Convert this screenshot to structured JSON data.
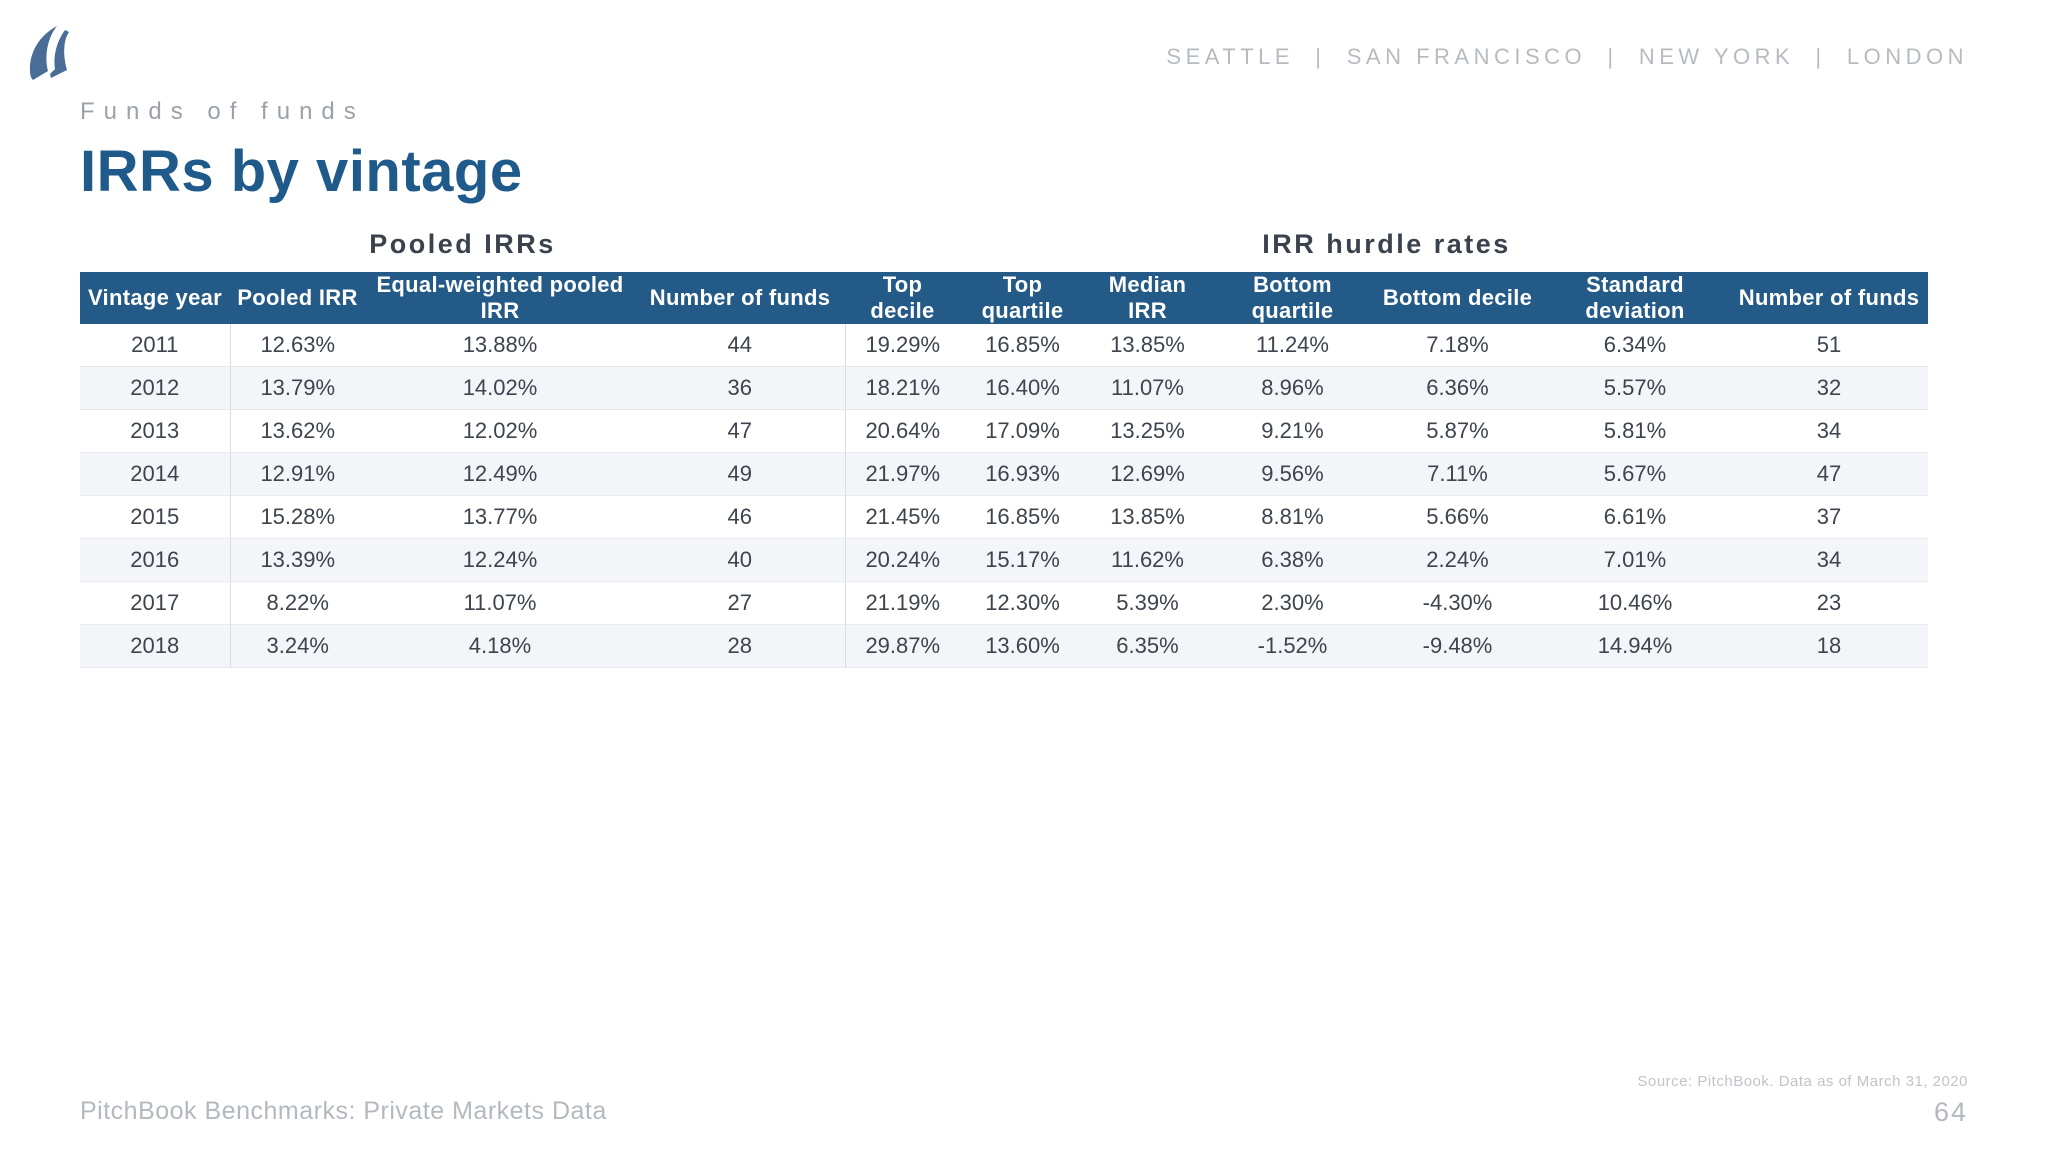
{
  "header": {
    "cities": "SEATTLE  |  SAN FRANCISCO  |  NEW YORK  |  LONDON",
    "eyebrow": "Funds of funds",
    "title": "IRRs by vintage"
  },
  "icons": {
    "logo": "pitchbook-sail-logo"
  },
  "colors": {
    "table_header_bg": "#235a87",
    "title_blue": "#1f5a8b",
    "logo_blue": "#496d96",
    "row_stripe": "#f3f5f9",
    "muted_gray": "#b4b9bf",
    "body_text": "#3d444d"
  },
  "table": {
    "group_headers": [
      {
        "label": "Pooled IRRs",
        "span": 4
      },
      {
        "label": "IRR hurdle rates",
        "span": 7
      }
    ],
    "columns": [
      "Vintage year",
      "Pooled IRR",
      "Equal-weighted pooled IRR",
      "Number of funds",
      "Top decile",
      "Top quartile",
      "Median IRR",
      "Bottom quartile",
      "Bottom decile",
      "Standard deviation",
      "Number of funds"
    ],
    "rows": [
      [
        "2011",
        "12.63%",
        "13.88%",
        "44",
        "19.29%",
        "16.85%",
        "13.85%",
        "11.24%",
        "7.18%",
        "6.34%",
        "51"
      ],
      [
        "2012",
        "13.79%",
        "14.02%",
        "36",
        "18.21%",
        "16.40%",
        "11.07%",
        "8.96%",
        "6.36%",
        "5.57%",
        "32"
      ],
      [
        "2013",
        "13.62%",
        "12.02%",
        "47",
        "20.64%",
        "17.09%",
        "13.25%",
        "9.21%",
        "5.87%",
        "5.81%",
        "34"
      ],
      [
        "2014",
        "12.91%",
        "12.49%",
        "49",
        "21.97%",
        "16.93%",
        "12.69%",
        "9.56%",
        "7.11%",
        "5.67%",
        "47"
      ],
      [
        "2015",
        "15.28%",
        "13.77%",
        "46",
        "21.45%",
        "16.85%",
        "13.85%",
        "8.81%",
        "5.66%",
        "6.61%",
        "37"
      ],
      [
        "2016",
        "13.39%",
        "12.24%",
        "40",
        "20.24%",
        "15.17%",
        "11.62%",
        "6.38%",
        "2.24%",
        "7.01%",
        "34"
      ],
      [
        "2017",
        "8.22%",
        "11.07%",
        "27",
        "21.19%",
        "12.30%",
        "5.39%",
        "2.30%",
        "-4.30%",
        "10.46%",
        "23"
      ],
      [
        "2018",
        "3.24%",
        "4.18%",
        "28",
        "29.87%",
        "13.60%",
        "6.35%",
        "-1.52%",
        "-9.48%",
        "14.94%",
        "18"
      ]
    ]
  },
  "footer": {
    "source": "Source: PitchBook. Data as of March 31, 2020",
    "left_text": "PitchBook Benchmarks: Private Markets Data",
    "page_number": "64"
  }
}
